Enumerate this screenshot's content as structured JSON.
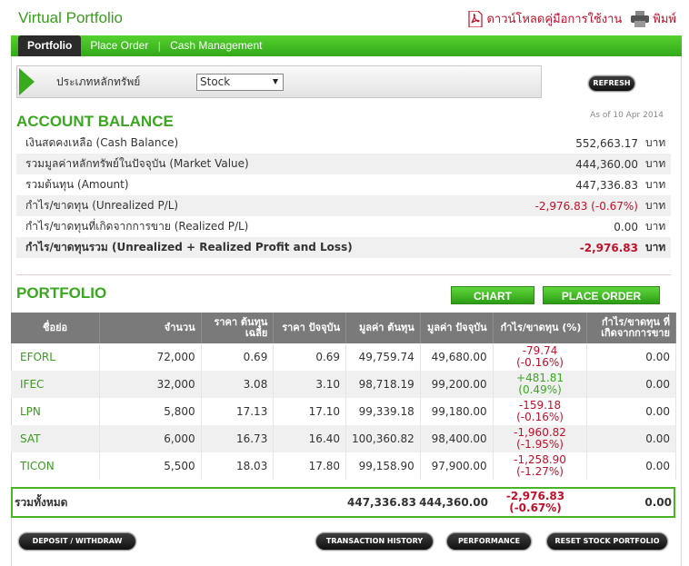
{
  "header": {
    "title": "Virtual Portfolio",
    "download_label": "ดาวน์โหลดคู่มือการใช้งาน",
    "print_label": "พิมพ์"
  },
  "tabs": [
    {
      "label": "Portfolio",
      "active": true
    },
    {
      "label": "Place Order",
      "active": false
    },
    {
      "label": "Cash Management",
      "active": false
    }
  ],
  "filter": {
    "label": "ประเภทหลักทรัพย์",
    "selected": "Stock",
    "refresh_label": "REFRESH"
  },
  "account": {
    "title": "ACCOUNT BALANCE",
    "as_of": "As of 10 Apr 2014",
    "unit": "บาท",
    "rows": [
      {
        "label": "เงินสดคงเหลือ (Cash Balance)",
        "value": "552,663.17"
      },
      {
        "label": "รวมมูลค่าหลักทรัพย์ในปัจจุบัน (Market Value)",
        "value": "444,360.00"
      },
      {
        "label": "รวมต้นทุน (Amount)",
        "value": "447,336.83"
      },
      {
        "label": "กำไร/ขาดทุน (Unrealized P/L)",
        "value": "-2,976.83 (-0.67%)"
      },
      {
        "label": "กำไร/ขาดทุนที่เกิดจากการขาย (Realized P/L)",
        "value": "0.00"
      },
      {
        "label": "กำไร/ขาดทุนรวม (Unrealized + Realized Profit and Loss)",
        "value": "-2,976.83"
      }
    ]
  },
  "portfolio": {
    "title": "PORTFOLIO",
    "chart_label": "CHART",
    "place_order_label": "PLACE ORDER",
    "columns": [
      "ชื่อย่อ",
      "จำนวน",
      "ราคา ต้นทุนเฉลี่ย",
      "ราคา ปัจจุบัน",
      "มูลค่า ต้นทุน",
      "มูลค่า ปัจจุบัน",
      "กำไร/ขาดทุน (%)",
      "กำไร/ขาดทุน ที่ เกิดจากการขาย"
    ],
    "rows": [
      {
        "symbol": "EFORL",
        "qty": "72,000",
        "avg_cost": "0.69",
        "price": "0.69",
        "cost_value": "49,759.74",
        "market_value": "49,680.00",
        "pl": "-79.74",
        "pl_pct": "(-0.16%)",
        "realized": "0.00",
        "sign": "neg"
      },
      {
        "symbol": "IFEC",
        "qty": "32,000",
        "avg_cost": "3.08",
        "price": "3.10",
        "cost_value": "98,718.19",
        "market_value": "99,200.00",
        "pl": "+481.81",
        "pl_pct": "(0.49%)",
        "realized": "0.00",
        "sign": "pos"
      },
      {
        "symbol": "LPN",
        "qty": "5,800",
        "avg_cost": "17.13",
        "price": "17.10",
        "cost_value": "99,339.18",
        "market_value": "99,180.00",
        "pl": "-159.18",
        "pl_pct": "(-0.16%)",
        "realized": "0.00",
        "sign": "neg"
      },
      {
        "symbol": "SAT",
        "qty": "6,000",
        "avg_cost": "16.73",
        "price": "16.40",
        "cost_value": "100,360.82",
        "market_value": "98,400.00",
        "pl": "-1,960.82",
        "pl_pct": "(-1.95%)",
        "realized": "0.00",
        "sign": "neg"
      },
      {
        "symbol": "TICON",
        "qty": "5,500",
        "avg_cost": "18.03",
        "price": "17.80",
        "cost_value": "99,158.90",
        "market_value": "97,900.00",
        "pl": "-1,258.90",
        "pl_pct": "(-1.27%)",
        "realized": "0.00",
        "sign": "neg"
      }
    ],
    "total": {
      "label": "รวมทั้งหมด",
      "cost_value": "447,336.83",
      "market_value": "444,360.00",
      "pl": "-2,976.83",
      "pl_pct": "(-0.67%)",
      "realized": "0.00"
    }
  },
  "actions": {
    "deposit": "DEPOSIT / WITHDRAW",
    "history": "TRANSACTION HISTORY",
    "performance": "PERFORMANCE",
    "reset": "RESET STOCK PORTFOLIO"
  },
  "colors": {
    "green": "#3aa81f",
    "red": "#c0102a"
  }
}
